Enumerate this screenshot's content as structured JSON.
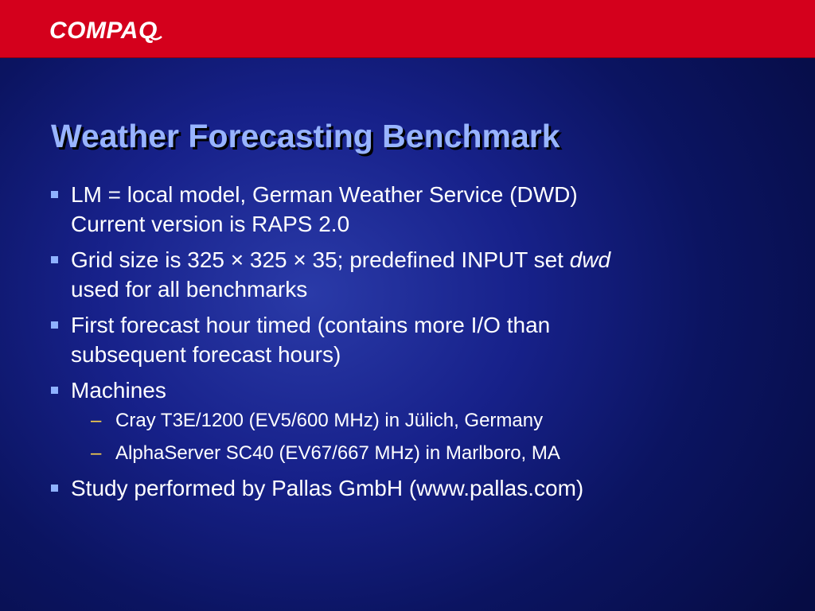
{
  "brand": {
    "logo_text": "COMPAQ",
    "bar_color": "#d4001c",
    "logo_color": "#ffffff"
  },
  "slide": {
    "title": "Weather Forecasting Benchmark",
    "title_color": "#98b4ff",
    "bullet_marker_icon": "square-bullet-icon",
    "sub_marker_char": "–",
    "bullets": [
      {
        "line1": "LM = local model, German Weather Service (DWD)",
        "line2": "Current version is RAPS 2.0"
      },
      {
        "line1_before": "Grid size is 325 × 325 × 35; predefined INPUT set ",
        "line1_italic": "dwd",
        "line2": "used for all benchmarks"
      },
      {
        "line1": "First forecast hour timed (contains more I/O than",
        "line2": "subsequent forecast hours)"
      },
      {
        "line1": "Machines",
        "sub": [
          "Cray T3E/1200 (EV5/600 MHz) in Jülich, Germany",
          "AlphaServer SC40 (EV67/667 MHz) in Marlboro, MA"
        ]
      },
      {
        "line1": "Study performed by Pallas GmbH (www.pallas.com)"
      }
    ]
  }
}
